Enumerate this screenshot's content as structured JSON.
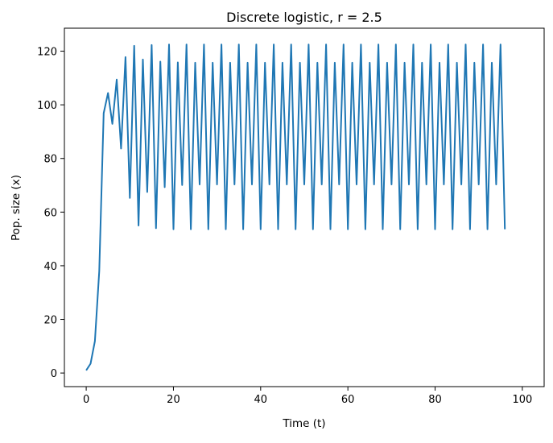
{
  "chart_data": {
    "type": "line",
    "title": "Discrete logistic, r = 2.5",
    "xlabel": "Time (t)",
    "ylabel": "Pop. size (x)",
    "xlim": [
      -5,
      105
    ],
    "ylim": [
      -5.07,
      128.57
    ],
    "xticks": [
      0,
      20,
      40,
      60,
      80,
      100
    ],
    "yticks": [
      0,
      20,
      40,
      60,
      80,
      100,
      120
    ],
    "grid": false,
    "color": "#1f77b4",
    "x_start": 0,
    "x_step": 1,
    "y": [
      1.0,
      3.5,
      11.9,
      38.0,
      96.9,
      104.4,
      92.9,
      109.4,
      83.7,
      117.8,
      65.3,
      122.0,
      55.0,
      116.9,
      67.5,
      122.3,
      54.0,
      116.1,
      69.3,
      122.5,
      53.6,
      115.8,
      70.1,
      122.5,
      53.6,
      115.7,
      70.3,
      122.5,
      53.6,
      115.7,
      70.3,
      122.5,
      53.6,
      115.7,
      70.3,
      122.5,
      53.6,
      115.7,
      70.3,
      122.5,
      53.6,
      115.7,
      70.3,
      122.5,
      53.6,
      115.7,
      70.3,
      122.5,
      53.6,
      115.7,
      70.3,
      122.5,
      53.6,
      115.7,
      70.3,
      122.5,
      53.6,
      115.7,
      70.3,
      122.5,
      53.6,
      115.7,
      70.3,
      122.5,
      53.6,
      115.7,
      70.3,
      122.5,
      53.6,
      115.7,
      70.3,
      122.5,
      53.6,
      115.7,
      70.3,
      122.5,
      53.6,
      115.7,
      70.3,
      122.5,
      53.6,
      115.7,
      70.3,
      122.5,
      53.6,
      115.7,
      70.3,
      122.5,
      53.6,
      115.7,
      70.3,
      122.5,
      53.6,
      115.7,
      70.3,
      122.5,
      53.6
    ]
  }
}
